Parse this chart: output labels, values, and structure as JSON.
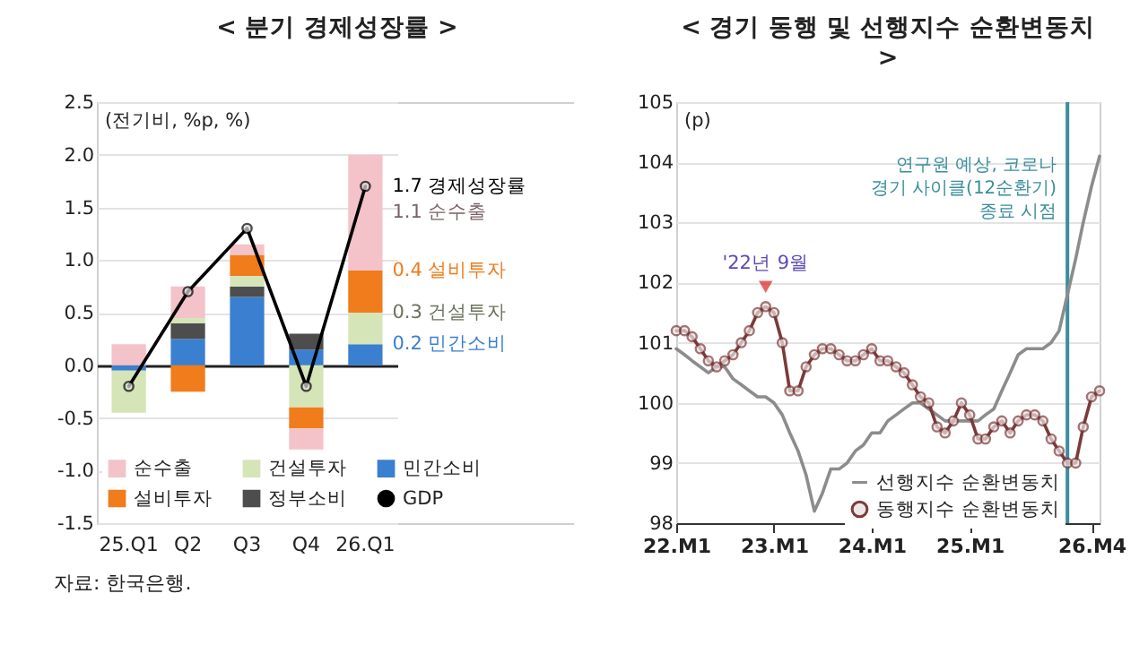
{
  "chart_data": [
    {
      "type": "bar",
      "title": "< 분기 경제성장률 >",
      "ylabel": "(전기비, %p, %)",
      "categories": [
        "25.Q1",
        "Q2",
        "Q3",
        "Q4",
        "26.Q1"
      ],
      "stacked": true,
      "ylim": [
        -1.5,
        2.5
      ],
      "yticks": [
        {
          "value": -1.5,
          "label": "-1.5"
        },
        {
          "value": -1,
          "label": "-1.0"
        },
        {
          "value": -0.5,
          "label": "-0.5"
        },
        {
          "value": 0,
          "label": "0.0"
        },
        0.5,
        {
          "value": 1,
          "label": "1.0"
        },
        1.5,
        {
          "value": 2,
          "label": "2.0"
        },
        2.5
      ],
      "grid": "y",
      "legend": "bottom",
      "series": [
        {
          "name": "민간소비",
          "color": "#3a7fd0",
          "values": [
            -0.05,
            0.25,
            0.65,
            0.15,
            0.2
          ]
        },
        {
          "name": "정부소비",
          "color": "#4d4d4d",
          "values": [
            0,
            0.15,
            0.1,
            0.15,
            0
          ]
        },
        {
          "name": "건설투자",
          "color": "#d5e5b8",
          "values": [
            -0.4,
            0.05,
            0.1,
            -0.4,
            0.3
          ]
        },
        {
          "name": "설비투자",
          "color": "#f07c1c",
          "values": [
            0,
            -0.25,
            0.2,
            -0.2,
            0.4
          ]
        },
        {
          "name": "순수출",
          "color": "#f3c3c9",
          "values": [
            0.2,
            0.3,
            0.1,
            -0.2,
            1.1
          ]
        },
        {
          "name": "GDP",
          "color": "#000000",
          "type": "line",
          "marker": "circle",
          "values": [
            -0.2,
            0.7,
            1.3,
            -0.2,
            1.7
          ]
        }
      ],
      "annotations": [
        {
          "text": "1.7 경제성장률",
          "x": "26.Q1",
          "y": 1.7
        },
        {
          "text": "1.1 순수출",
          "x": "26.Q1",
          "y": 1.45
        },
        {
          "text": "0.4 설비투자",
          "x": "26.Q1",
          "y": 0.9
        },
        {
          "text": "0.3 건설투자",
          "x": "26.Q1",
          "y": 0.5
        },
        {
          "text": "0.2 민간소비",
          "x": "26.Q1",
          "y": 0.2
        },
        "자료: 한국은행."
      ]
    },
    {
      "type": "line",
      "title": "< 경기 동행 및 선행지수 순환변동치 >",
      "ylabel": "(p)",
      "x": [
        "2022-01",
        "2022-02",
        "2022-03",
        "2022-04",
        "2022-05",
        "2022-06",
        "2022-07",
        "2022-08",
        "2022-09",
        "2022-10",
        "2022-11",
        "2022-12",
        "2023-01",
        "2023-02",
        "2023-03",
        "2023-04",
        "2023-05",
        "2023-06",
        "2023-07",
        "2023-08",
        "2023-09",
        "2023-10",
        "2023-11",
        "2023-12",
        "2024-01",
        "2024-02",
        "2024-03",
        "2024-04",
        "2024-05",
        "2024-06",
        "2024-07",
        "2024-08",
        "2024-09",
        "2024-10",
        "2024-11",
        "2024-12",
        "2025-01",
        "2025-02",
        "2025-03",
        "2025-04",
        "2025-05",
        "2025-06",
        "2025-07",
        "2025-08",
        "2025-09",
        "2025-10",
        "2025-11",
        "2025-12",
        "2026-01",
        "2026-02",
        "2026-03",
        "2026-04",
        "2026-05"
      ],
      "xlim": [
        "2022-01",
        "2026-05"
      ],
      "xticks": [
        {
          "value": "2022-01",
          "label": "22.M1"
        },
        {
          "value": "2023-01",
          "label": "23.M1"
        },
        {
          "value": "2024-01",
          "label": "24.M1"
        },
        {
          "value": "2025-01",
          "label": "25.M1"
        },
        {
          "value": "2026-04",
          "label": "26.M4"
        }
      ],
      "ylim": [
        98,
        105
      ],
      "yticks": [
        98,
        99,
        100,
        101,
        102,
        103,
        104,
        105
      ],
      "grid": "y",
      "legend": "bottom right",
      "series": [
        {
          "name": "선행지수 순환변동치",
          "color": "#8c8c8c",
          "marker": "none",
          "values": [
            100.9,
            100.8,
            100.7,
            100.6,
            100.5,
            100.6,
            100.6,
            100.4,
            100.3,
            100.2,
            100.1,
            100.1,
            100.0,
            99.8,
            99.5,
            99.2,
            98.8,
            98.2,
            98.5,
            98.9,
            98.9,
            99.0,
            99.2,
            99.3,
            99.5,
            99.5,
            99.7,
            99.8,
            99.9,
            100.0,
            100.0,
            99.9,
            99.8,
            99.7,
            99.7,
            99.7,
            99.7,
            99.7,
            99.8,
            99.9,
            100.2,
            100.5,
            100.8,
            100.9,
            100.9,
            100.9,
            101.0,
            101.2,
            101.8,
            102.4,
            103.0,
            103.6,
            104.1
          ]
        },
        {
          "name": "동행지수 순환변동치",
          "color": "#7b3a3a",
          "marker": "circle",
          "values": [
            101.2,
            101.2,
            101.1,
            100.9,
            100.7,
            100.6,
            100.7,
            100.8,
            101.0,
            101.2,
            101.5,
            101.6,
            101.5,
            101.0,
            100.2,
            100.2,
            100.6,
            100.8,
            100.9,
            100.9,
            100.8,
            100.7,
            100.7,
            100.8,
            100.9,
            100.7,
            100.7,
            100.6,
            100.5,
            100.3,
            100.1,
            100.0,
            99.6,
            99.5,
            99.7,
            100.0,
            99.8,
            99.4,
            99.4,
            99.6,
            99.7,
            99.5,
            99.7,
            99.8,
            99.8,
            99.7,
            99.4,
            99.2,
            99.0,
            99.0,
            99.6,
            100.1,
            100.2
          ]
        }
      ],
      "ref_lines": [
        {
          "axis": "x",
          "value": "2026-01",
          "label": "연구원 예상, 코로나\n경기 사이클(12순환기)\n종료 시점",
          "color": "#3b8e9c"
        }
      ],
      "annotations": [
        {
          "text": "'22년 9월",
          "x": "2022-12",
          "y": 101.6
        }
      ]
    }
  ]
}
